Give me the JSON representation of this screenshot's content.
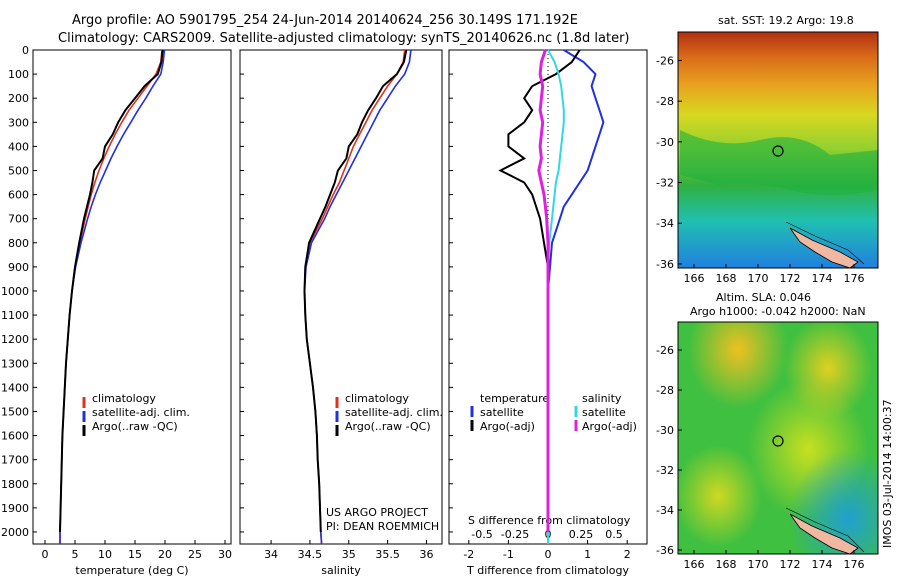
{
  "header": {
    "line1": "Argo profile: AO 5901795_254 24-Jun-2014 20140624_256 30.149S 171.192E",
    "line2": "Climatology: CARS2009. Satellite-adjusted climatology: synTS_20140626.nc (1.8d later)"
  },
  "colors": {
    "clim": "#e0301e",
    "sat": "#2030e0",
    "argo": "#000000",
    "sat_s": "#30d8e0",
    "argo_s": "#e020e0"
  },
  "depth_ticks": [
    "0",
    "100",
    "200",
    "300",
    "400",
    "500",
    "600",
    "700",
    "800",
    "900",
    "1000",
    "1100",
    "1200",
    "1300",
    "1400",
    "1500",
    "1600",
    "1700",
    "1800",
    "1900",
    "2000"
  ],
  "chart_data": [
    {
      "type": "line",
      "xlabel": "temperature (deg C)",
      "xlim": [
        -2,
        31
      ],
      "ylim": [
        2050,
        0
      ],
      "xticks": [
        "0",
        "5",
        "10",
        "15",
        "20",
        "25",
        "30"
      ],
      "legend": [
        "climatology",
        "satellite-adj. clim.",
        "Argo(..raw -QC)"
      ],
      "depth": [
        0,
        50,
        100,
        150,
        200,
        250,
        300,
        350,
        400,
        450,
        500,
        550,
        600,
        650,
        700,
        800,
        900,
        1000,
        1100,
        1200,
        1300,
        1400,
        1500,
        1600,
        1700,
        1800,
        1900,
        2000,
        2050
      ],
      "series": [
        {
          "name": "climatology",
          "values": [
            19.5,
            19.3,
            18.5,
            17.0,
            15.5,
            14.0,
            12.8,
            11.7,
            10.7,
            9.8,
            9.0,
            8.3,
            7.7,
            7.2,
            6.7,
            5.8,
            5.0,
            4.5,
            4.1,
            3.8,
            3.5,
            3.3,
            3.1,
            2.9,
            2.8,
            2.7,
            2.6,
            2.5,
            2.5
          ]
        },
        {
          "name": "satellite-adj. clim.",
          "values": [
            19.9,
            19.7,
            19.3,
            18.0,
            16.8,
            15.5,
            14.3,
            13.1,
            12.0,
            11.0,
            10.1,
            9.2,
            8.4,
            7.7,
            7.1,
            6.0,
            5.1,
            4.5,
            4.1,
            3.8,
            3.5,
            3.3,
            3.1,
            2.9,
            2.8,
            2.7,
            2.6,
            2.5,
            2.5
          ]
        },
        {
          "name": "Argo(..raw -QC)",
          "values": [
            19.6,
            19.4,
            18.8,
            16.6,
            15.0,
            13.4,
            12.2,
            11.3,
            10.0,
            9.6,
            8.2,
            7.9,
            7.5,
            7.0,
            6.5,
            5.7,
            5.0,
            4.5,
            4.1,
            3.8,
            3.5,
            3.3,
            3.1,
            2.9,
            2.8,
            2.7,
            2.6,
            2.5,
            null
          ]
        }
      ]
    },
    {
      "type": "line",
      "xlabel": "salinity",
      "xlim": [
        33.6,
        36.2
      ],
      "ylim": [
        2050,
        0
      ],
      "xticks": [
        "34",
        "34.5",
        "35",
        "35.5",
        "36"
      ],
      "legend": [
        "climatology",
        "satellite-adj. clim.",
        "Argo(..raw -QC)"
      ],
      "annotation": [
        "US ARGO PROJECT",
        "PI: DEAN ROEMMICH"
      ],
      "depth": [
        0,
        50,
        100,
        150,
        200,
        250,
        300,
        350,
        400,
        450,
        500,
        550,
        600,
        650,
        700,
        800,
        900,
        1000,
        1100,
        1200,
        1300,
        1400,
        1500,
        1600,
        1700,
        1800,
        1900,
        2000,
        2050
      ],
      "series": [
        {
          "name": "climatology",
          "values": [
            35.72,
            35.7,
            35.62,
            35.5,
            35.4,
            35.3,
            35.22,
            35.14,
            35.06,
            35.0,
            34.94,
            34.88,
            34.8,
            34.73,
            34.66,
            34.5,
            34.44,
            34.43,
            34.44,
            34.46,
            34.5,
            34.54,
            34.57,
            34.59,
            34.6,
            34.62,
            34.63,
            34.64,
            34.65
          ]
        },
        {
          "name": "satellite-adj. clim.",
          "values": [
            35.8,
            35.78,
            35.72,
            35.6,
            35.5,
            35.4,
            35.32,
            35.24,
            35.16,
            35.08,
            35.0,
            34.92,
            34.84,
            34.76,
            34.69,
            34.52,
            34.45,
            34.43,
            34.44,
            34.46,
            34.5,
            34.54,
            34.57,
            34.59,
            34.6,
            34.62,
            34.63,
            34.64,
            34.65
          ]
        },
        {
          "name": "Argo(..raw -QC)",
          "values": [
            35.74,
            35.71,
            35.62,
            35.44,
            35.35,
            35.25,
            35.17,
            35.11,
            35.0,
            34.97,
            34.86,
            34.82,
            34.76,
            34.7,
            34.63,
            34.49,
            34.44,
            34.43,
            34.44,
            34.46,
            34.5,
            34.54,
            34.57,
            34.59,
            34.6,
            34.62,
            34.63,
            34.64,
            null
          ]
        }
      ]
    },
    {
      "type": "line",
      "xlabel": "T difference from climatology",
      "xlabel_top": "S difference from climatology",
      "xlim": [
        -2.5,
        2.5
      ],
      "ylim": [
        2050,
        0
      ],
      "xticks": [
        "-2",
        "-1",
        "0",
        "1",
        "2"
      ],
      "xticks_top": [
        "-0.5",
        "-0.25",
        "0",
        "0.25",
        "0.5"
      ],
      "legend": [
        "temperature",
        "satellite",
        "Argo(-adj)",
        "salinity",
        "satellite",
        "Argo(-adj)"
      ],
      "depth": [
        0,
        50,
        100,
        150,
        200,
        250,
        300,
        350,
        400,
        450,
        500,
        550,
        600,
        650,
        700,
        800,
        900,
        1000,
        1100,
        1200,
        1300,
        1400,
        1500,
        1600,
        1700,
        1800,
        1900,
        2000,
        2050
      ],
      "series": [
        {
          "name": "T satellite",
          "values": [
            0.4,
            0.9,
            1.2,
            1.1,
            1.2,
            1.3,
            1.4,
            1.3,
            1.2,
            1.1,
            1.0,
            0.8,
            0.6,
            0.4,
            0.3,
            0.1,
            0.05,
            0.0,
            0.0,
            0.0,
            0.0,
            0.0,
            0.0,
            0.0,
            0.0,
            0.0,
            0.0,
            0.0,
            0.0
          ]
        },
        {
          "name": "T Argo(-adj)",
          "values": [
            0.8,
            0.6,
            0.2,
            -0.4,
            -0.6,
            -0.4,
            -0.6,
            -1.0,
            -1.0,
            -0.6,
            -1.2,
            -0.6,
            -0.4,
            -0.3,
            -0.2,
            -0.1,
            0.0,
            0.0,
            0.0,
            0.0,
            0.0,
            0.0,
            0.0,
            0.0,
            0.0,
            0.0,
            0.0,
            0.0,
            null
          ]
        },
        {
          "name": "S satellite",
          "values": [
            0.0,
            0.05,
            0.08,
            0.1,
            0.11,
            0.12,
            0.12,
            0.11,
            0.1,
            0.09,
            0.08,
            0.06,
            0.05,
            0.04,
            0.03,
            0.01,
            0.0,
            0.0,
            0.0,
            0.0,
            0.0,
            0.0,
            0.0,
            0.0,
            0.0,
            0.0,
            0.0,
            0.0,
            0.0
          ]
        },
        {
          "name": "S Argo(-adj)",
          "values": [
            -0.02,
            -0.05,
            -0.06,
            -0.04,
            -0.05,
            -0.06,
            -0.04,
            -0.05,
            -0.06,
            -0.05,
            -0.07,
            -0.05,
            -0.03,
            -0.02,
            -0.01,
            0.0,
            0.0,
            0.0,
            0.0,
            0.0,
            0.0,
            0.0,
            0.0,
            0.0,
            0.0,
            0.0,
            0.0,
            0.0,
            null
          ]
        }
      ]
    },
    {
      "type": "heatmap",
      "title": "sat. SST: 19.2 Argo: 19.8",
      "xticks": [
        "166",
        "168",
        "170",
        "172",
        "174",
        "176"
      ],
      "yticks": [
        "-26",
        "-28",
        "-30",
        "-32",
        "-34",
        "-36"
      ],
      "xlim": [
        165,
        177.5
      ],
      "ylim": [
        -36.2,
        -24.6
      ],
      "marker": {
        "lon": 171.2,
        "lat": -30.15
      }
    },
    {
      "type": "heatmap",
      "title_line1": "Altim. SLA: 0.046",
      "title_line2": "Argo h1000: -0.042 h2000: NaN",
      "xticks": [
        "166",
        "168",
        "170",
        "172",
        "174",
        "176"
      ],
      "yticks": [
        "-26",
        "-28",
        "-30",
        "-32",
        "-34",
        "-36"
      ],
      "xlim": [
        165,
        177.5
      ],
      "ylim": [
        -36.2,
        -24.6
      ],
      "marker": {
        "lon": 171.2,
        "lat": -30.15
      }
    }
  ],
  "footer": "IMOS 03-Jul-2014 14:00:37"
}
